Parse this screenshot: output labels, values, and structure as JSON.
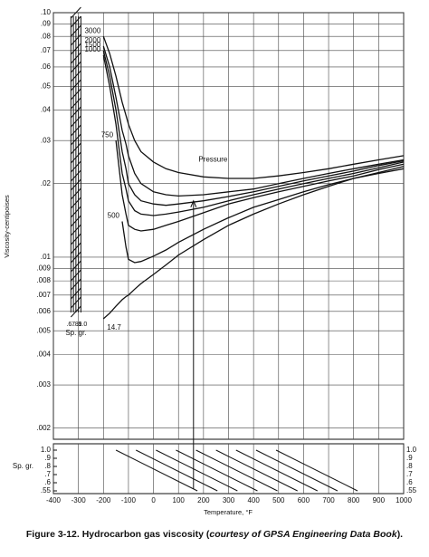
{
  "chart_data": {
    "type": "line",
    "y_label": "Viscosity-centipoises",
    "x_label": "Temperature, °F",
    "caption": {
      "main": "Figure 3-12. Hydrocarbon gas viscosity (",
      "source": "courtesy of GPSA Engineering Data Book",
      "end": ")."
    },
    "annotation": "Pressure",
    "log_y": true,
    "grid": true,
    "xlim": [
      -400,
      1000
    ],
    "xticks": [
      -400,
      -300,
      -200,
      -100,
      0,
      100,
      200,
      300,
      400,
      500,
      600,
      700,
      800,
      900,
      1000
    ],
    "ylim": [
      0.0018,
      0.1
    ],
    "yticks": [
      {
        "value": 0.1,
        "label": ".10"
      },
      {
        "value": 0.09,
        "label": ".09"
      },
      {
        "value": 0.08,
        "label": ".08"
      },
      {
        "value": 0.07,
        "label": ".07"
      },
      {
        "value": 0.06,
        "label": ".06"
      },
      {
        "value": 0.05,
        "label": ".05"
      },
      {
        "value": 0.04,
        "label": ".04"
      },
      {
        "value": 0.03,
        "label": ".03"
      },
      {
        "value": 0.02,
        "label": ".02"
      },
      {
        "value": 0.01,
        "label": ".01"
      },
      {
        "value": 0.009,
        "label": ".009"
      },
      {
        "value": 0.008,
        "label": ".008"
      },
      {
        "value": 0.007,
        "label": ".007"
      },
      {
        "value": 0.006,
        "label": ".006"
      },
      {
        "value": 0.005,
        "label": ".005"
      },
      {
        "value": 0.004,
        "label": ".004"
      },
      {
        "value": 0.003,
        "label": ".003"
      },
      {
        "value": 0.002,
        "label": ".002"
      }
    ],
    "x": [
      -200,
      -175,
      -150,
      -125,
      -110,
      -100,
      -75,
      -50,
      0,
      50,
      100,
      200,
      300,
      400,
      500,
      600,
      700,
      800,
      900,
      1000
    ],
    "series": [
      {
        "name": "3000",
        "color": "#111111",
        "values": [
          0.08,
          0.068,
          0.055,
          0.043,
          0.038,
          0.035,
          0.03,
          0.027,
          0.0245,
          0.023,
          0.0222,
          0.0213,
          0.021,
          0.021,
          0.0215,
          0.0222,
          0.023,
          0.024,
          0.025,
          0.026
        ]
      },
      {
        "name": "2000",
        "color": "#111111",
        "values": [
          0.073,
          0.06,
          0.045,
          0.033,
          0.029,
          0.026,
          0.022,
          0.02,
          0.0185,
          0.018,
          0.0178,
          0.018,
          0.0185,
          0.019,
          0.02,
          0.021,
          0.022,
          0.023,
          0.024,
          0.025
        ]
      },
      {
        "name": "1500",
        "color": "#111111",
        "values": [
          0.07,
          0.055,
          0.04,
          0.027,
          0.023,
          0.02,
          0.018,
          0.017,
          0.0165,
          0.0163,
          0.0165,
          0.017,
          0.0177,
          0.0185,
          0.0195,
          0.0205,
          0.0215,
          0.0225,
          0.0237,
          0.0248
        ]
      },
      {
        "name": "1000",
        "color": "#111111",
        "values": [
          0.067,
          0.05,
          0.035,
          0.022,
          0.019,
          0.017,
          0.0155,
          0.015,
          0.0148,
          0.015,
          0.0153,
          0.016,
          0.017,
          0.018,
          0.019,
          0.02,
          0.021,
          0.022,
          0.0232,
          0.0245
        ]
      },
      {
        "name": "750",
        "color": "#111111",
        "values": [
          null,
          null,
          0.03,
          0.018,
          0.015,
          0.0135,
          0.013,
          0.0128,
          0.013,
          0.0135,
          0.014,
          0.0152,
          0.0165,
          0.0175,
          0.0185,
          0.0195,
          0.0205,
          0.0215,
          0.0228,
          0.024
        ]
      },
      {
        "name": "500",
        "color": "#111111",
        "values": [
          null,
          null,
          null,
          0.014,
          0.011,
          0.0098,
          0.0095,
          0.0096,
          0.0101,
          0.0107,
          0.0115,
          0.013,
          0.0145,
          0.016,
          0.0172,
          0.0185,
          0.0198,
          0.021,
          0.0222,
          0.0235
        ]
      },
      {
        "name": "14.7",
        "color": "#111111",
        "values": [
          0.0056,
          0.0059,
          0.0063,
          0.0067,
          0.0069,
          0.007,
          0.0074,
          0.0078,
          0.0085,
          0.0093,
          0.0102,
          0.0118,
          0.0135,
          0.015,
          0.0165,
          0.018,
          0.0195,
          0.021,
          0.022,
          0.023
        ]
      }
    ],
    "sp_gr_title": "Sp. gr.",
    "sp_gr_labels": [
      "1.0",
      ".9",
      ".8",
      ".7",
      ".6",
      ".55"
    ],
    "left_scale_labels": [
      ".6",
      ".7",
      ".8",
      ".9",
      "1.0"
    ]
  }
}
